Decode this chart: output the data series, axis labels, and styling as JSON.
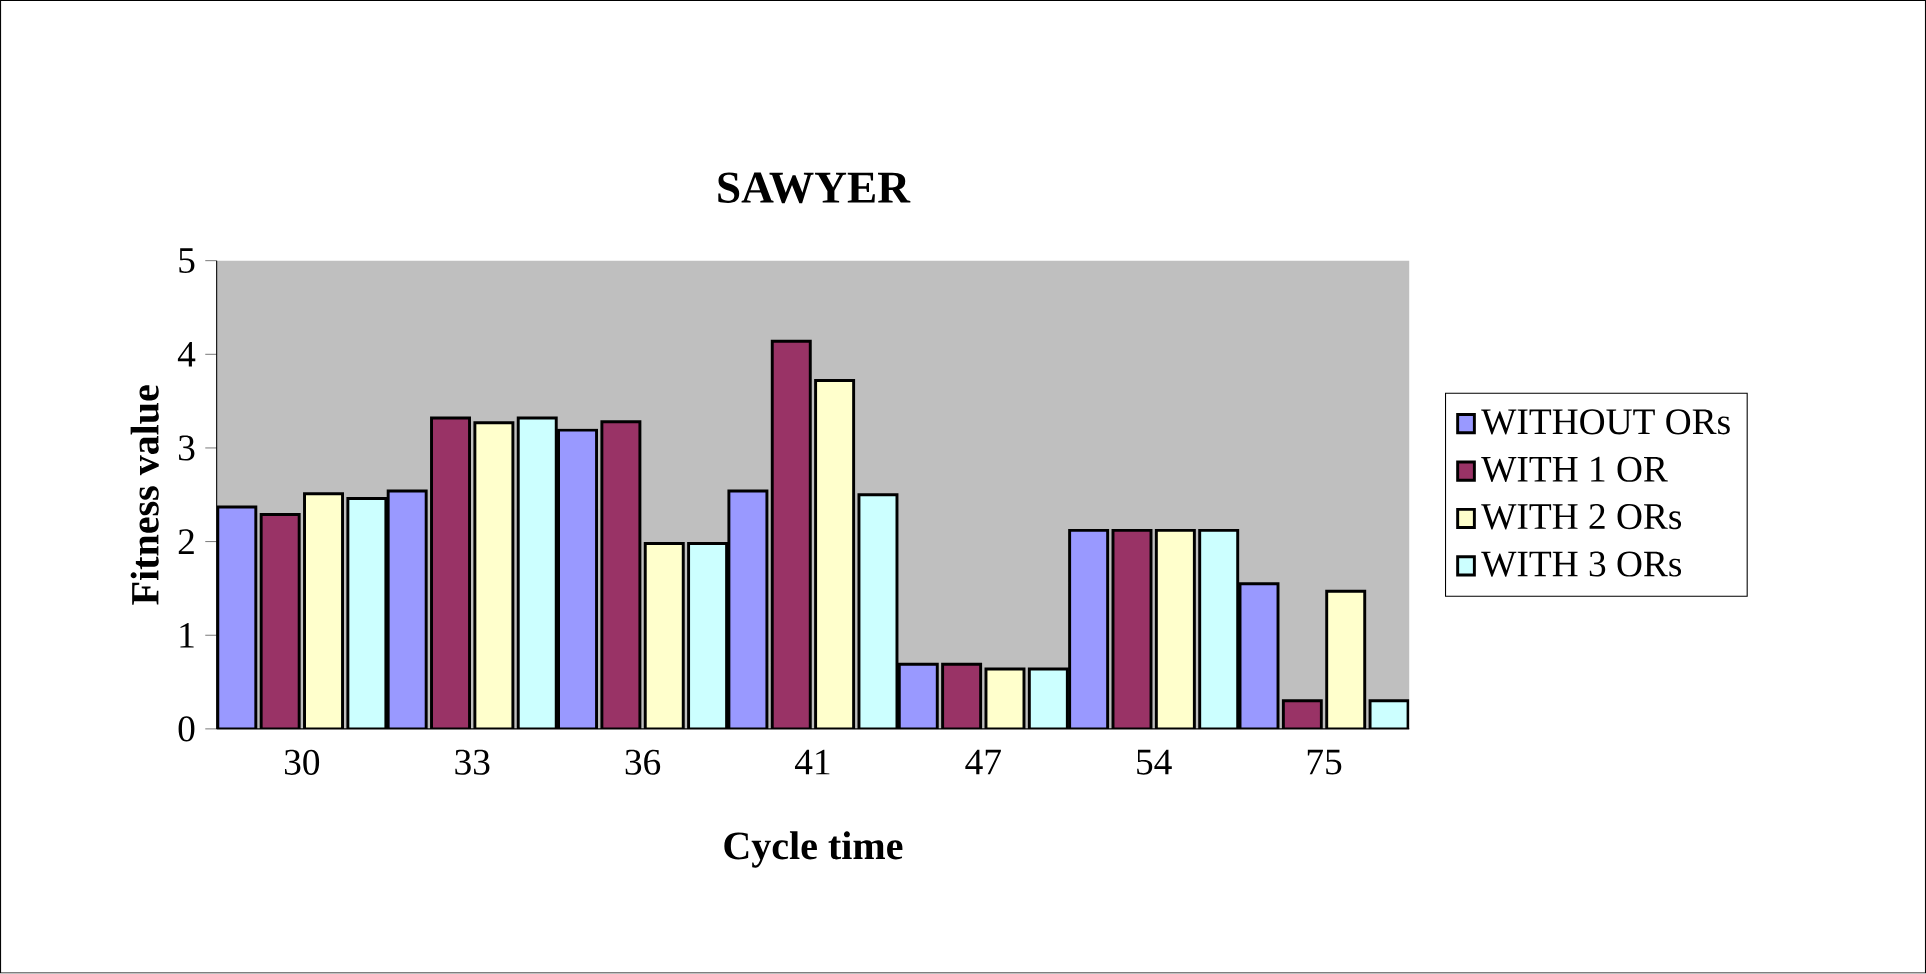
{
  "chart_data": {
    "type": "bar",
    "title": "SAWYER",
    "xlabel": "Cycle time",
    "ylabel": "Fitness value",
    "categories": [
      "30",
      "33",
      "36",
      "41",
      "47",
      "54",
      "75"
    ],
    "series": [
      {
        "name": "WITHOUT ORs",
        "color": "#9999ff",
        "values": [
          2.37,
          2.54,
          3.19,
          2.54,
          0.69,
          2.12,
          1.55
        ]
      },
      {
        "name": "WITH 1 OR",
        "color": "#993366",
        "values": [
          2.29,
          3.32,
          3.28,
          4.14,
          0.69,
          2.12,
          0.3
        ]
      },
      {
        "name": "WITH 2 ORs",
        "color": "#ffffcc",
        "values": [
          2.51,
          3.27,
          1.98,
          3.72,
          0.64,
          2.12,
          1.47
        ]
      },
      {
        "name": "WITH 3 ORs",
        "color": "#ccffff",
        "values": [
          2.46,
          3.32,
          1.98,
          2.5,
          0.64,
          2.12,
          0.3
        ]
      }
    ],
    "ylim": [
      0,
      5
    ],
    "yticks": [
      0,
      1,
      2,
      3,
      4,
      5
    ],
    "grid": false,
    "legend": "right"
  }
}
